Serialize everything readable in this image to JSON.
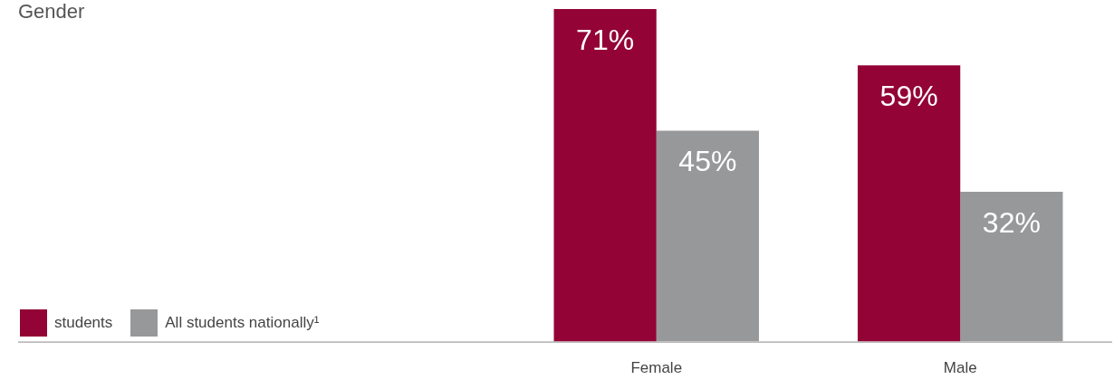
{
  "chart_data": {
    "type": "bar",
    "title": "Gender",
    "categories": [
      "Female",
      "Male"
    ],
    "legend": "bottom left",
    "ylim": [
      0,
      71
    ],
    "series": [
      {
        "name": "students",
        "color": "#930335",
        "values": [
          71,
          59
        ],
        "value_labels": [
          "71%",
          "59%"
        ]
      },
      {
        "name": "All students nationally¹",
        "color": "#97989a",
        "values": [
          45,
          32
        ],
        "value_labels": [
          "45%",
          "32%"
        ]
      }
    ]
  }
}
